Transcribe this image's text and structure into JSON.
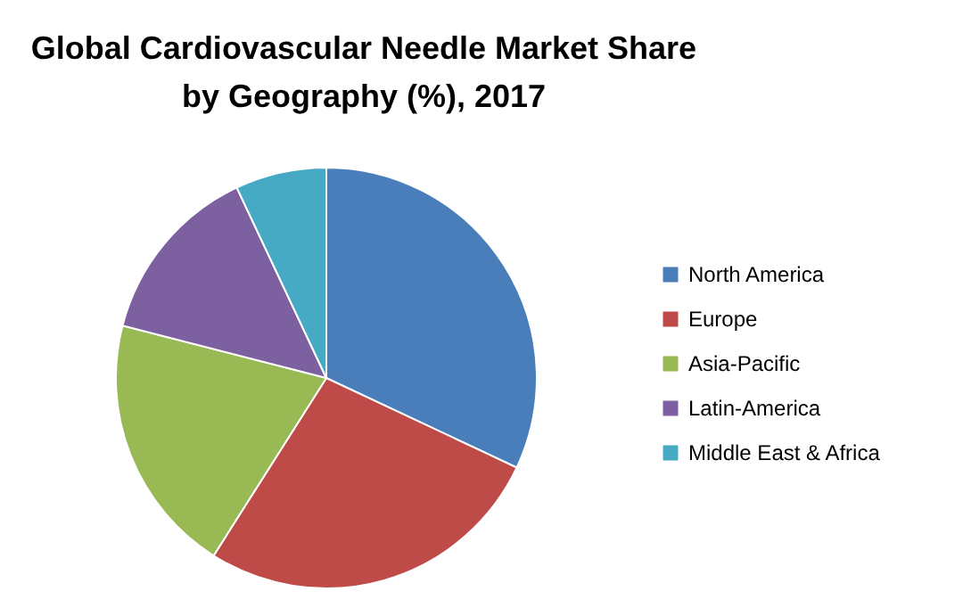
{
  "chart_data": {
    "type": "pie",
    "title": "Global Cardiovascular Needle Market  Share by Geography (%), 2017",
    "categories": [
      "North America",
      "Europe",
      "Asia-Pacific",
      "Latin-America",
      "Middle East & Africa"
    ],
    "values": [
      32,
      27,
      20,
      14,
      7
    ],
    "colors": [
      "#4a7ebb",
      "#be4b48",
      "#98b954",
      "#7d60a0",
      "#46aac5"
    ],
    "legend": "right"
  }
}
